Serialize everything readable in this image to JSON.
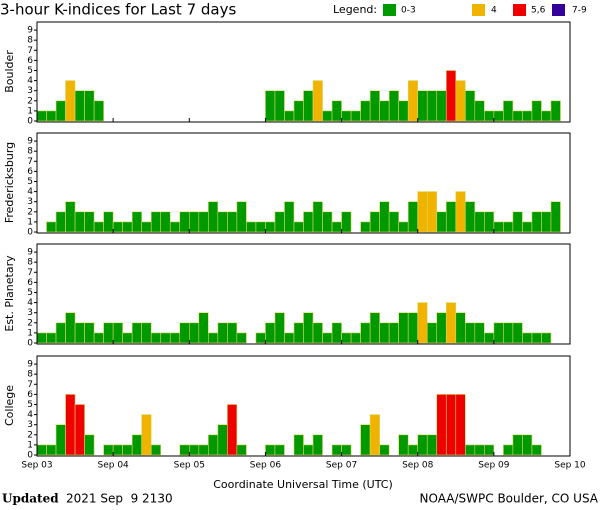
{
  "chart_data": {
    "type": "bar",
    "title": "3-hour K-indices for Last 7 days",
    "legend_title": "Legend:",
    "legend": [
      {
        "label": "0-3",
        "color": "#009900"
      },
      {
        "label": "4",
        "color": "#f0b400"
      },
      {
        "label": "5,6",
        "color": "#ee0000"
      },
      {
        "label": "7-9",
        "color": "#330099"
      }
    ],
    "xlabel": "Coordinate Universal Time (UTC)",
    "xlim": [
      0,
      56
    ],
    "xticks": [
      {
        "value": 0,
        "label": "Sep 03"
      },
      {
        "value": 8,
        "label": "Sep 04"
      },
      {
        "value": 16,
        "label": "Sep 05"
      },
      {
        "value": 24,
        "label": "Sep 06"
      },
      {
        "value": 32,
        "label": "Sep 07"
      },
      {
        "value": 40,
        "label": "Sep 08"
      },
      {
        "value": 48,
        "label": "Sep 09"
      },
      {
        "value": 56,
        "label": "Sep 10"
      }
    ],
    "ylim": [
      0,
      9.8
    ],
    "yticks": [
      0,
      1,
      2,
      3,
      4,
      5,
      6,
      7,
      8,
      9
    ],
    "panels": [
      {
        "name": "Boulder",
        "values": [
          1,
          1,
          2,
          4,
          3,
          3,
          2,
          0,
          0,
          0,
          0,
          0,
          0,
          0,
          0,
          0,
          0,
          0,
          0,
          0,
          0,
          0,
          0,
          0,
          3,
          3,
          1,
          2,
          3,
          4,
          1,
          2,
          1,
          1,
          2,
          3,
          2,
          3,
          2,
          4,
          3,
          3,
          3,
          5,
          4,
          3,
          2,
          1,
          1,
          2,
          1,
          1,
          2,
          1,
          2,
          0
        ]
      },
      {
        "name": "Fredericksburg",
        "values": [
          0,
          1,
          2,
          3,
          2,
          2,
          1,
          2,
          1,
          1,
          2,
          1,
          2,
          2,
          1,
          2,
          2,
          2,
          3,
          2,
          2,
          3,
          1,
          1,
          1,
          2,
          3,
          1,
          2,
          3,
          2,
          1,
          2,
          0,
          1,
          2,
          3,
          2,
          1,
          3,
          4,
          4,
          2,
          3,
          4,
          3,
          2,
          2,
          1,
          1,
          2,
          1,
          2,
          2,
          3,
          0
        ]
      },
      {
        "name": "Est. Planetary",
        "values": [
          1,
          1,
          2,
          3,
          2,
          2,
          1,
          2,
          2,
          1,
          2,
          2,
          1,
          1,
          1,
          2,
          2,
          3,
          1,
          2,
          2,
          1,
          0,
          1,
          2,
          3,
          1,
          2,
          3,
          2,
          1,
          2,
          1,
          1,
          2,
          3,
          2,
          2,
          3,
          3,
          4,
          2,
          3,
          4,
          3,
          2,
          2,
          1,
          2,
          2,
          2,
          1,
          1,
          1,
          0,
          0
        ]
      },
      {
        "name": "College",
        "values": [
          1,
          1,
          3,
          6,
          5,
          2,
          0,
          1,
          1,
          1,
          2,
          4,
          1,
          0,
          0,
          1,
          1,
          1,
          2,
          3,
          5,
          1,
          0,
          0,
          1,
          1,
          0,
          2,
          1,
          2,
          0,
          1,
          1,
          0,
          3,
          4,
          1,
          0,
          2,
          1,
          2,
          2,
          6,
          6,
          6,
          1,
          1,
          1,
          0,
          1,
          2,
          2,
          1,
          0,
          0,
          0
        ]
      }
    ],
    "updated_label": "Updated",
    "updated_time": "2021 Sep  9 2130",
    "credit": "NOAA/SWPC Boulder, CO USA"
  }
}
